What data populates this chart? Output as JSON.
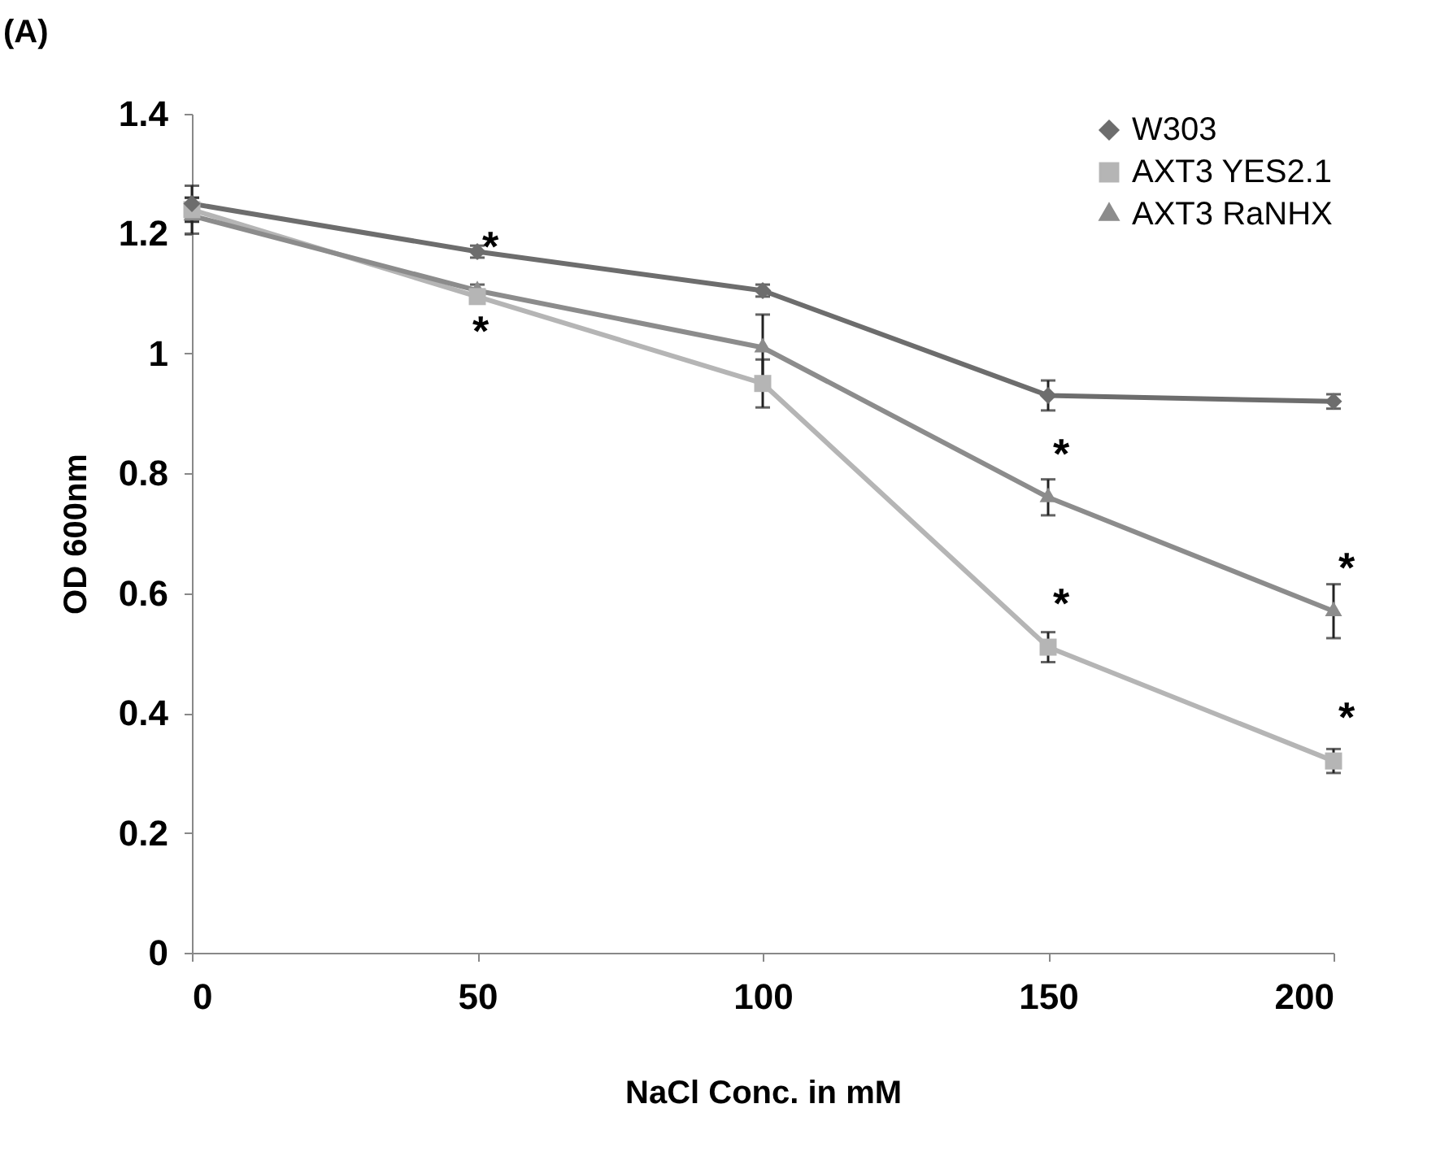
{
  "chart_data": {
    "type": "line",
    "xlabel": "NaCl Conc. in mM",
    "ylabel": "OD 600nm",
    "x": [
      0,
      50,
      100,
      150,
      200
    ],
    "series": [
      {
        "name": "W303",
        "color": "#6d6d6d",
        "marker": "diamond",
        "values": [
          1.25,
          1.17,
          1.105,
          0.93,
          0.92
        ],
        "errors": [
          0.03,
          0.01,
          0.01,
          0.025,
          0.012
        ]
      },
      {
        "name": "AXT3 YES2.1",
        "color": "#b5b5b5",
        "marker": "square",
        "values": [
          1.24,
          1.095,
          0.95,
          0.51,
          0.32
        ],
        "errors": [
          0.02,
          0.01,
          0.04,
          0.025,
          0.02
        ]
      },
      {
        "name": "AXT3 RaNHX",
        "color": "#8c8c8c",
        "marker": "triangle",
        "values": [
          1.23,
          1.105,
          1.01,
          0.76,
          0.57
        ],
        "errors": [
          0.03,
          0.01,
          0.055,
          0.03,
          0.045
        ]
      }
    ],
    "xlim": [
      0,
      200
    ],
    "xticks": [
      0,
      50,
      100,
      150,
      200
    ],
    "ylim": [
      0,
      1.4
    ],
    "yticks": [
      0,
      0.2,
      0.4,
      0.6,
      0.8,
      1,
      1.2,
      1.4
    ],
    "grid": false,
    "legend": "top right",
    "line_style": "solid",
    "annotations": [
      "(A)",
      {
        "text": "*",
        "x": 50,
        "y": 1.105
      },
      {
        "text": "*",
        "x": 50,
        "y": 1.095
      },
      {
        "text": "*",
        "x": 150,
        "y": 0.76
      },
      {
        "text": "*",
        "x": 150,
        "y": 0.51
      },
      {
        "text": "*",
        "x": 200,
        "y": 0.57
      },
      {
        "text": "*",
        "x": 200,
        "y": 0.32
      }
    ]
  }
}
